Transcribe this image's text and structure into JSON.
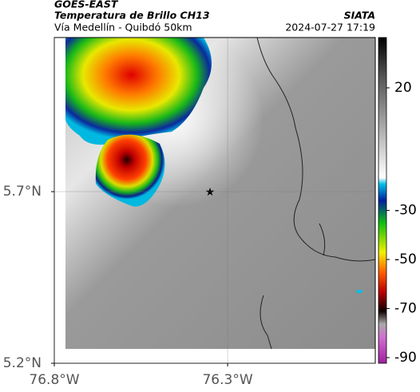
{
  "header": {
    "source": "GOES-EAST",
    "product": "Temperatura de Brillo CH13",
    "route": "Vía Medellín - Quibdó 50km",
    "agency": "SIATA",
    "timestamp": "2024-07-27 17:19"
  },
  "map": {
    "xlim": [
      -76.8,
      -75.874
    ],
    "ylim": [
      5.2,
      6.149
    ],
    "xticks": [
      {
        "value": -76.8,
        "label": "76.8°W"
      },
      {
        "value": -76.3,
        "label": "76.3°W"
      }
    ],
    "yticks": [
      {
        "value": 5.2,
        "label": "5.2°N"
      },
      {
        "value": 5.7,
        "label": "5.7°N"
      }
    ],
    "grid": true
  },
  "colorbar": {
    "lim": [
      -92.3,
      40.5
    ],
    "ticks": [
      20,
      -30,
      -50,
      -70,
      -90
    ]
  }
}
